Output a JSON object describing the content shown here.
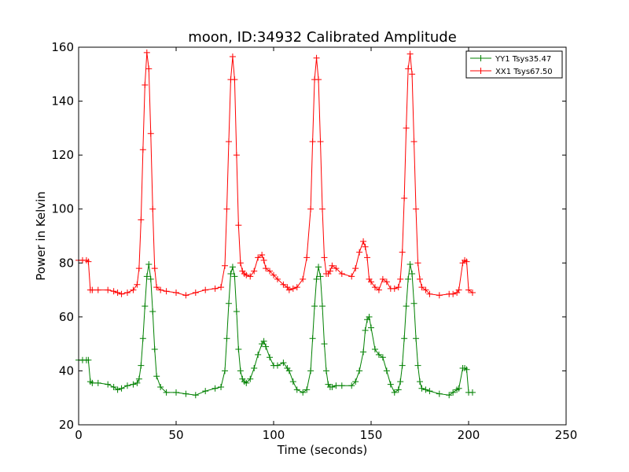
{
  "chart_data": {
    "type": "line",
    "title": "moon, ID:34932 Calibrated Amplitude",
    "xlabel": "Time (seconds)",
    "ylabel": "Power in Kelvin",
    "xlim": [
      0,
      250
    ],
    "ylim": [
      20,
      160
    ],
    "xticks": [
      0,
      50,
      100,
      150,
      200,
      250
    ],
    "yticks": [
      20,
      40,
      60,
      80,
      100,
      120,
      140,
      160
    ],
    "grid": false,
    "legend_position": "top-right",
    "marker": "plus",
    "series": [
      {
        "name": "YY1 Tsys35.47",
        "color": "#008000",
        "x": [
          0,
          2,
          4,
          5,
          6,
          7,
          10,
          15,
          18,
          20,
          22,
          25,
          28,
          30,
          31,
          32,
          33,
          34,
          35,
          36,
          37,
          38,
          39,
          40,
          42,
          45,
          50,
          55,
          60,
          65,
          70,
          73,
          75,
          76,
          77,
          78,
          79,
          80,
          81,
          82,
          83,
          84,
          85,
          86,
          88,
          90,
          92,
          94,
          95,
          96,
          98,
          100,
          102,
          105,
          107,
          108,
          110,
          112,
          115,
          117,
          119,
          120,
          121,
          122,
          123,
          124,
          125,
          126,
          127,
          128,
          129,
          130,
          132,
          135,
          140,
          142,
          144,
          146,
          147,
          148,
          149,
          150,
          152,
          154,
          156,
          158,
          160,
          162,
          164,
          165,
          166,
          167,
          168,
          169,
          170,
          171,
          172,
          173,
          174,
          175,
          176,
          178,
          180,
          185,
          190,
          192,
          194,
          195,
          197,
          198,
          199,
          200,
          202
        ],
        "values": [
          44,
          44,
          44,
          44,
          36,
          35.5,
          35.5,
          35,
          34,
          33,
          33.5,
          34.5,
          35,
          35.5,
          37,
          42,
          52,
          64,
          75,
          79.5,
          74,
          62,
          48,
          38,
          34,
          32,
          32,
          31.5,
          31,
          32.5,
          33.5,
          34,
          40,
          52,
          65,
          76,
          78.5,
          75,
          62,
          48,
          40,
          37,
          36,
          35.5,
          37,
          41,
          46,
          50,
          51,
          49,
          45,
          42,
          42,
          43,
          41,
          40,
          36,
          33,
          32,
          33,
          40,
          52,
          64,
          74,
          78.5,
          75,
          64,
          50,
          40,
          35,
          34,
          34,
          34.5,
          34.5,
          34.5,
          36,
          40,
          47,
          55,
          59,
          60,
          56,
          48,
          46,
          45,
          40,
          35,
          32,
          33,
          36,
          42,
          52,
          64,
          74,
          79.5,
          76,
          65,
          52,
          42,
          36,
          33.5,
          33,
          32.5,
          31.5,
          31,
          32,
          33,
          33.5,
          41,
          41,
          40.5,
          32,
          32
        ]
      },
      {
        "name": "XX1 Tsys67.50",
        "color": "#ff0000",
        "x": [
          0,
          2,
          4,
          5,
          6,
          7,
          10,
          15,
          18,
          20,
          22,
          25,
          28,
          30,
          31,
          32,
          33,
          34,
          35,
          36,
          37,
          38,
          39,
          40,
          42,
          45,
          50,
          55,
          60,
          65,
          70,
          73,
          75,
          76,
          77,
          78,
          79,
          80,
          81,
          82,
          83,
          84,
          85,
          86,
          88,
          90,
          92,
          94,
          95,
          96,
          98,
          100,
          102,
          105,
          107,
          108,
          110,
          112,
          115,
          117,
          119,
          120,
          121,
          122,
          123,
          124,
          125,
          126,
          127,
          128,
          129,
          130,
          132,
          135,
          140,
          142,
          144,
          146,
          147,
          148,
          149,
          150,
          152,
          154,
          156,
          158,
          160,
          162,
          164,
          165,
          166,
          167,
          168,
          169,
          170,
          171,
          172,
          173,
          174,
          175,
          176,
          178,
          180,
          185,
          190,
          192,
          194,
          195,
          197,
          198,
          199,
          200,
          202
        ],
        "values": [
          81,
          81,
          81,
          80.5,
          70,
          70,
          70,
          70,
          69.5,
          69,
          68.5,
          69,
          70,
          72,
          78,
          96,
          122,
          146,
          158,
          152,
          128,
          100,
          78,
          71,
          70,
          69.5,
          69,
          68,
          69,
          70,
          70.5,
          71,
          79,
          100,
          125,
          148,
          156.5,
          148,
          120,
          94,
          80,
          77,
          76,
          75.5,
          75,
          77,
          82,
          83,
          81,
          78,
          77,
          75.5,
          74,
          72,
          71,
          70,
          70.5,
          71,
          74,
          82,
          100,
          125,
          148,
          156,
          148,
          125,
          100,
          82,
          76,
          76,
          77,
          79,
          78,
          76,
          75,
          78,
          84,
          88,
          86,
          82,
          74,
          73,
          71,
          70,
          74,
          73,
          70.5,
          70.5,
          71,
          74,
          84,
          104,
          130,
          152,
          157.5,
          150,
          125,
          100,
          80,
          74,
          71,
          70,
          68.5,
          68,
          68.5,
          68.5,
          69,
          70,
          80,
          81,
          80.5,
          70,
          69
        ]
      }
    ]
  }
}
